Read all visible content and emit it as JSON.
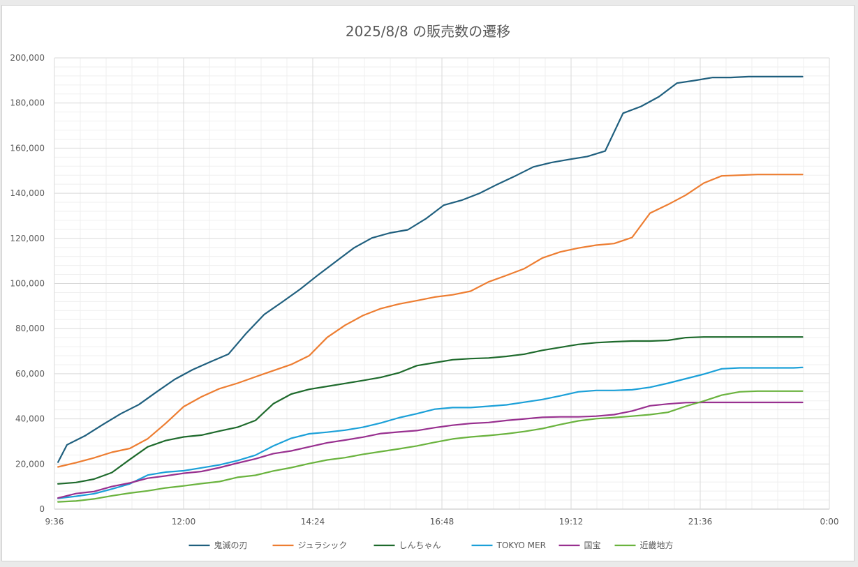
{
  "chart_data": {
    "type": "line",
    "title": "2025/8/8 の販売数の遷移",
    "xlabel": "",
    "ylabel": "",
    "x_unit": "time of day",
    "x_range": [
      "9:36",
      "0:00"
    ],
    "x_ticks": [
      "9:36",
      "12:00",
      "14:24",
      "16:48",
      "19:12",
      "21:36",
      "0:00"
    ],
    "y_range": [
      0,
      200000
    ],
    "y_ticks": [
      "0",
      "20,000",
      "40,000",
      "60,000",
      "80,000",
      "100,000",
      "120,000",
      "140,000",
      "160,000",
      "180,000",
      "200,000"
    ],
    "grid": true,
    "legend_position": "bottom",
    "x": [
      "9:40",
      "10:00",
      "10:30",
      "11:00",
      "11:30",
      "12:00",
      "12:30",
      "13:00",
      "13:30",
      "14:00",
      "14:30",
      "15:00",
      "15:30",
      "16:00",
      "16:30",
      "17:00",
      "17:30",
      "18:00",
      "18:30",
      "19:00",
      "19:30",
      "20:00",
      "20:30",
      "21:00",
      "21:30",
      "22:00",
      "22:30",
      "23:00",
      "23:30"
    ],
    "series": [
      {
        "name": "鬼滅の刃",
        "color": "#1f5f7e",
        "points": [
          [
            "9:40",
            20800
          ],
          [
            "9:50",
            28500
          ],
          [
            "10:10",
            32500
          ],
          [
            "10:30",
            37500
          ],
          [
            "10:50",
            42300
          ],
          [
            "11:10",
            46300
          ],
          [
            "11:30",
            52000
          ],
          [
            "11:50",
            57500
          ],
          [
            "12:10",
            61800
          ],
          [
            "12:30",
            65300
          ],
          [
            "12:50",
            68700
          ],
          [
            "13:10",
            78000
          ],
          [
            "13:30",
            86300
          ],
          [
            "13:50",
            91800
          ],
          [
            "14:10",
            97500
          ],
          [
            "14:30",
            103800
          ],
          [
            "14:50",
            109800
          ],
          [
            "15:10",
            115800
          ],
          [
            "15:30",
            120200
          ],
          [
            "15:50",
            122400
          ],
          [
            "16:10",
            123800
          ],
          [
            "16:30",
            128700
          ],
          [
            "16:50",
            134700
          ],
          [
            "17:10",
            136900
          ],
          [
            "17:30",
            140000
          ],
          [
            "17:50",
            144000
          ],
          [
            "18:10",
            147700
          ],
          [
            "18:30",
            151700
          ],
          [
            "18:50",
            153600
          ],
          [
            "19:10",
            155000
          ],
          [
            "19:30",
            156300
          ],
          [
            "19:50",
            158700
          ],
          [
            "20:10",
            175500
          ],
          [
            "20:30",
            178500
          ],
          [
            "20:50",
            182800
          ],
          [
            "21:10",
            188800
          ],
          [
            "21:30",
            190000
          ],
          [
            "21:50",
            191300
          ],
          [
            "22:10",
            191300
          ],
          [
            "22:30",
            191700
          ],
          [
            "23:30",
            191700
          ]
        ]
      },
      {
        "name": "ジュラシック",
        "color": "#ed7d31",
        "points": [
          [
            "9:40",
            18700
          ],
          [
            "10:00",
            20600
          ],
          [
            "10:20",
            22700
          ],
          [
            "10:40",
            25200
          ],
          [
            "11:00",
            26900
          ],
          [
            "11:20",
            31200
          ],
          [
            "11:40",
            38000
          ],
          [
            "12:00",
            45400
          ],
          [
            "12:20",
            49800
          ],
          [
            "12:40",
            53400
          ],
          [
            "13:00",
            55800
          ],
          [
            "13:20",
            58600
          ],
          [
            "13:40",
            61400
          ],
          [
            "14:00",
            64100
          ],
          [
            "14:20",
            68000
          ],
          [
            "14:40",
            76100
          ],
          [
            "15:00",
            81500
          ],
          [
            "15:20",
            85800
          ],
          [
            "15:40",
            88900
          ],
          [
            "16:00",
            90900
          ],
          [
            "16:20",
            92400
          ],
          [
            "16:40",
            94000
          ],
          [
            "17:00",
            95000
          ],
          [
            "17:20",
            96600
          ],
          [
            "17:40",
            100700
          ],
          [
            "18:00",
            103600
          ],
          [
            "18:20",
            106600
          ],
          [
            "18:40",
            111300
          ],
          [
            "19:00",
            114000
          ],
          [
            "19:20",
            115700
          ],
          [
            "19:40",
            117000
          ],
          [
            "20:00",
            117700
          ],
          [
            "20:20",
            120400
          ],
          [
            "20:40",
            131200
          ],
          [
            "21:00",
            135000
          ],
          [
            "21:20",
            139200
          ],
          [
            "21:40",
            144500
          ],
          [
            "22:00",
            147700
          ],
          [
            "22:20",
            148000
          ],
          [
            "22:40",
            148300
          ],
          [
            "23:30",
            148300
          ]
        ]
      },
      {
        "name": "しんちゃん",
        "color": "#1e6a2c",
        "points": [
          [
            "9:40",
            11200
          ],
          [
            "10:00",
            11800
          ],
          [
            "10:20",
            13300
          ],
          [
            "10:40",
            16200
          ],
          [
            "11:00",
            22000
          ],
          [
            "11:20",
            27600
          ],
          [
            "11:40",
            30400
          ],
          [
            "12:00",
            32000
          ],
          [
            "12:20",
            32800
          ],
          [
            "12:40",
            34600
          ],
          [
            "13:00",
            36300
          ],
          [
            "13:20",
            39300
          ],
          [
            "13:40",
            46700
          ],
          [
            "14:00",
            51000
          ],
          [
            "14:20",
            53100
          ],
          [
            "14:40",
            54400
          ],
          [
            "15:00",
            55700
          ],
          [
            "15:20",
            57000
          ],
          [
            "15:40",
            58400
          ],
          [
            "16:00",
            60400
          ],
          [
            "16:20",
            63600
          ],
          [
            "16:40",
            64900
          ],
          [
            "17:00",
            66200
          ],
          [
            "17:20",
            66700
          ],
          [
            "17:40",
            67000
          ],
          [
            "18:00",
            67700
          ],
          [
            "18:20",
            68700
          ],
          [
            "18:40",
            70400
          ],
          [
            "19:00",
            71700
          ],
          [
            "19:20",
            73000
          ],
          [
            "19:40",
            73800
          ],
          [
            "20:00",
            74200
          ],
          [
            "20:20",
            74500
          ],
          [
            "20:40",
            74500
          ],
          [
            "21:00",
            74800
          ],
          [
            "21:20",
            76000
          ],
          [
            "21:40",
            76300
          ],
          [
            "23:30",
            76300
          ]
        ]
      },
      {
        "name": "TOKYO MER",
        "color": "#1ba0d8",
        "points": [
          [
            "9:40",
            4800
          ],
          [
            "10:00",
            5700
          ],
          [
            "10:20",
            6800
          ],
          [
            "10:40",
            8900
          ],
          [
            "11:00",
            11200
          ],
          [
            "11:20",
            15100
          ],
          [
            "11:40",
            16400
          ],
          [
            "12:00",
            17000
          ],
          [
            "12:20",
            18300
          ],
          [
            "12:40",
            19600
          ],
          [
            "13:00",
            21500
          ],
          [
            "13:20",
            23900
          ],
          [
            "13:40",
            28000
          ],
          [
            "14:00",
            31400
          ],
          [
            "14:20",
            33400
          ],
          [
            "14:40",
            34100
          ],
          [
            "15:00",
            35000
          ],
          [
            "15:20",
            36300
          ],
          [
            "15:40",
            38200
          ],
          [
            "16:00",
            40500
          ],
          [
            "16:20",
            42300
          ],
          [
            "16:40",
            44300
          ],
          [
            "17:00",
            45000
          ],
          [
            "17:20",
            45000
          ],
          [
            "17:40",
            45600
          ],
          [
            "18:00",
            46200
          ],
          [
            "18:20",
            47400
          ],
          [
            "18:40",
            48600
          ],
          [
            "19:00",
            50200
          ],
          [
            "19:20",
            52000
          ],
          [
            "19:40",
            52600
          ],
          [
            "20:00",
            52600
          ],
          [
            "20:20",
            52900
          ],
          [
            "20:40",
            54000
          ],
          [
            "21:00",
            55800
          ],
          [
            "21:20",
            57800
          ],
          [
            "21:40",
            59800
          ],
          [
            "22:00",
            62200
          ],
          [
            "22:20",
            62600
          ],
          [
            "23:00",
            62600
          ],
          [
            "23:20",
            62600
          ],
          [
            "23:30",
            62800
          ]
        ]
      },
      {
        "name": "国宝",
        "color": "#98308f",
        "points": [
          [
            "9:40",
            4900
          ],
          [
            "10:00",
            6900
          ],
          [
            "10:20",
            7800
          ],
          [
            "10:40",
            10000
          ],
          [
            "11:00",
            11600
          ],
          [
            "11:20",
            13700
          ],
          [
            "11:40",
            14700
          ],
          [
            "12:00",
            15900
          ],
          [
            "12:20",
            16700
          ],
          [
            "12:40",
            18400
          ],
          [
            "13:00",
            20400
          ],
          [
            "13:20",
            22300
          ],
          [
            "13:40",
            24600
          ],
          [
            "14:00",
            25800
          ],
          [
            "14:20",
            27600
          ],
          [
            "14:40",
            29400
          ],
          [
            "15:00",
            30600
          ],
          [
            "15:20",
            31900
          ],
          [
            "15:40",
            33500
          ],
          [
            "16:00",
            34200
          ],
          [
            "16:20",
            34800
          ],
          [
            "16:40",
            36100
          ],
          [
            "17:00",
            37200
          ],
          [
            "17:20",
            38000
          ],
          [
            "17:40",
            38400
          ],
          [
            "18:00",
            39300
          ],
          [
            "18:20",
            40000
          ],
          [
            "18:40",
            40700
          ],
          [
            "19:00",
            40900
          ],
          [
            "19:20",
            40900
          ],
          [
            "19:40",
            41200
          ],
          [
            "20:00",
            41900
          ],
          [
            "20:20",
            43500
          ],
          [
            "20:40",
            45800
          ],
          [
            "21:00",
            46600
          ],
          [
            "21:20",
            47200
          ],
          [
            "21:40",
            47300
          ],
          [
            "23:30",
            47300
          ]
        ]
      },
      {
        "name": "近畿地方",
        "color": "#6ab33e",
        "points": [
          [
            "9:40",
            3200
          ],
          [
            "10:00",
            3600
          ],
          [
            "10:20",
            4500
          ],
          [
            "10:40",
            5900
          ],
          [
            "11:00",
            7100
          ],
          [
            "11:20",
            8100
          ],
          [
            "11:40",
            9400
          ],
          [
            "12:00",
            10300
          ],
          [
            "12:20",
            11300
          ],
          [
            "12:40",
            12200
          ],
          [
            "13:00",
            14100
          ],
          [
            "13:20",
            15000
          ],
          [
            "13:40",
            16900
          ],
          [
            "14:00",
            18400
          ],
          [
            "14:20",
            20200
          ],
          [
            "14:40",
            21800
          ],
          [
            "15:00",
            22800
          ],
          [
            "15:20",
            24300
          ],
          [
            "15:40",
            25500
          ],
          [
            "16:00",
            26700
          ],
          [
            "16:20",
            28000
          ],
          [
            "16:40",
            29600
          ],
          [
            "17:00",
            31100
          ],
          [
            "17:20",
            32000
          ],
          [
            "17:40",
            32600
          ],
          [
            "18:00",
            33400
          ],
          [
            "18:20",
            34400
          ],
          [
            "18:40",
            35700
          ],
          [
            "19:00",
            37500
          ],
          [
            "19:20",
            39100
          ],
          [
            "19:40",
            40100
          ],
          [
            "20:00",
            40600
          ],
          [
            "20:20",
            41200
          ],
          [
            "20:40",
            41900
          ],
          [
            "21:00",
            42900
          ],
          [
            "21:20",
            45600
          ],
          [
            "21:40",
            47900
          ],
          [
            "22:00",
            50500
          ],
          [
            "22:20",
            52000
          ],
          [
            "22:40",
            52300
          ],
          [
            "23:30",
            52300
          ]
        ]
      }
    ]
  }
}
